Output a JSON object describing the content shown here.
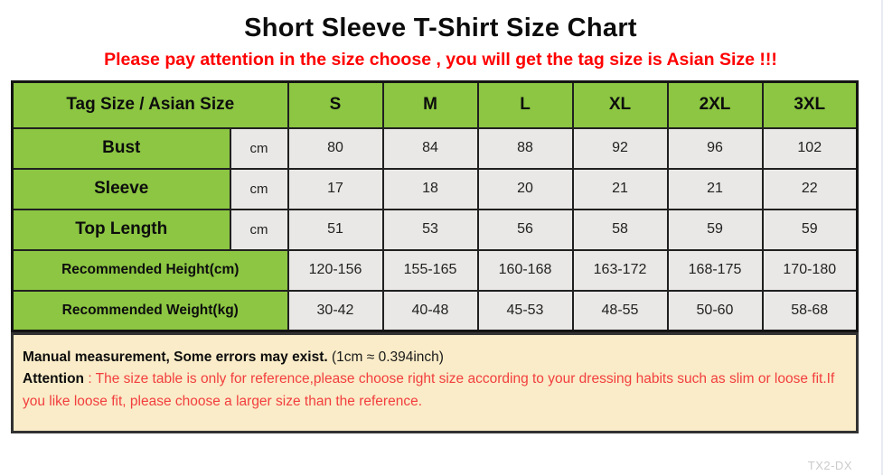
{
  "page": {
    "title": "Short Sleeve T-Shirt Size Chart",
    "warning": "Please pay attention in the size choose , you will get the tag size is Asian Size !!!",
    "watermark": "TX2-DX"
  },
  "chart_data": {
    "type": "table",
    "title": "Short Sleeve T-Shirt Size Chart",
    "header": {
      "label": "Tag Size / Asian Size",
      "sizes": [
        "S",
        "M",
        "L",
        "XL",
        "2XL",
        "3XL"
      ]
    },
    "rows": [
      {
        "label": "Bust",
        "unit": "cm",
        "merged": false,
        "values": [
          "80",
          "84",
          "88",
          "92",
          "96",
          "102"
        ]
      },
      {
        "label": "Sleeve",
        "unit": "cm",
        "merged": false,
        "values": [
          "17",
          "18",
          "20",
          "21",
          "21",
          "22"
        ]
      },
      {
        "label": "Top Length",
        "unit": "cm",
        "merged": false,
        "values": [
          "51",
          "53",
          "56",
          "58",
          "59",
          "59"
        ]
      },
      {
        "label": "Recommended Height(cm)",
        "unit": "",
        "merged": true,
        "values": [
          "120-156",
          "155-165",
          "160-168",
          "163-172",
          "168-175",
          "170-180"
        ]
      },
      {
        "label": "Recommended Weight(kg)",
        "unit": "",
        "merged": true,
        "values": [
          "30-42",
          "40-48",
          "45-53",
          "48-55",
          "50-60",
          "58-68"
        ]
      }
    ]
  },
  "notes": {
    "measurement_bold": "Manual measurement, Some errors may exist.",
    "measurement_normal": "  (1cm ≈ 0.394inch)",
    "attention_label": "Attention",
    "attention_separator": " : ",
    "attention_text": "The size table is only for reference,please choose right size according to your dressing habits such as slim or loose fit.If you like loose fit, please choose a larger size than the reference."
  },
  "colors": {
    "green": "#8cc642",
    "cell_gray": "#e9e8e6",
    "note_bg": "#faecc8",
    "warning_red": "#ff0000",
    "attention_red": "#f23e3e",
    "watermark_gray": "#cbcbcb"
  }
}
